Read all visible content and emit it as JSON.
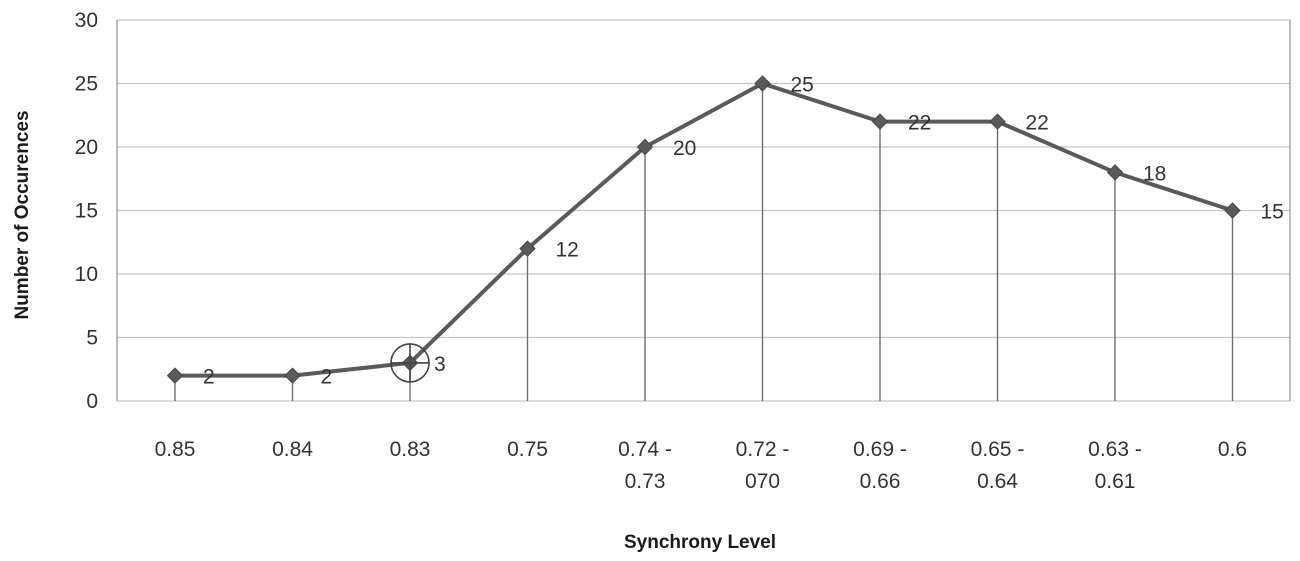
{
  "chart_data": {
    "type": "line",
    "title": "",
    "xlabel": "Synchrony Level",
    "ylabel": "Number of Occurences",
    "ylim": [
      0,
      30
    ],
    "yticks": [
      "0",
      "5",
      "10",
      "15",
      "20",
      "25",
      "30"
    ],
    "categories": [
      [
        "0.85"
      ],
      [
        "0.84"
      ],
      [
        "0.83"
      ],
      [
        "0.75"
      ],
      [
        "0.74 -",
        "0.73"
      ],
      [
        "0.72 -",
        "070"
      ],
      [
        "0.69 -",
        "0.66"
      ],
      [
        "0.65 -",
        "0.64"
      ],
      [
        "0.63 -",
        "0.61"
      ],
      [
        "0.6"
      ]
    ],
    "series": [
      {
        "values": [
          2,
          2,
          3,
          12,
          20,
          25,
          22,
          22,
          18,
          15
        ]
      }
    ],
    "data_labels": [
      "2",
      "2",
      "3",
      "12",
      "20",
      "25",
      "22",
      "22",
      "18",
      "15"
    ],
    "highlighted_point_index": 2,
    "grid": true,
    "drop_lines": true,
    "legend": "none",
    "colors": {
      "series": "#5a5a5a",
      "grid": "#c6c6c6",
      "drop_lines": "#6e6e6e"
    }
  }
}
